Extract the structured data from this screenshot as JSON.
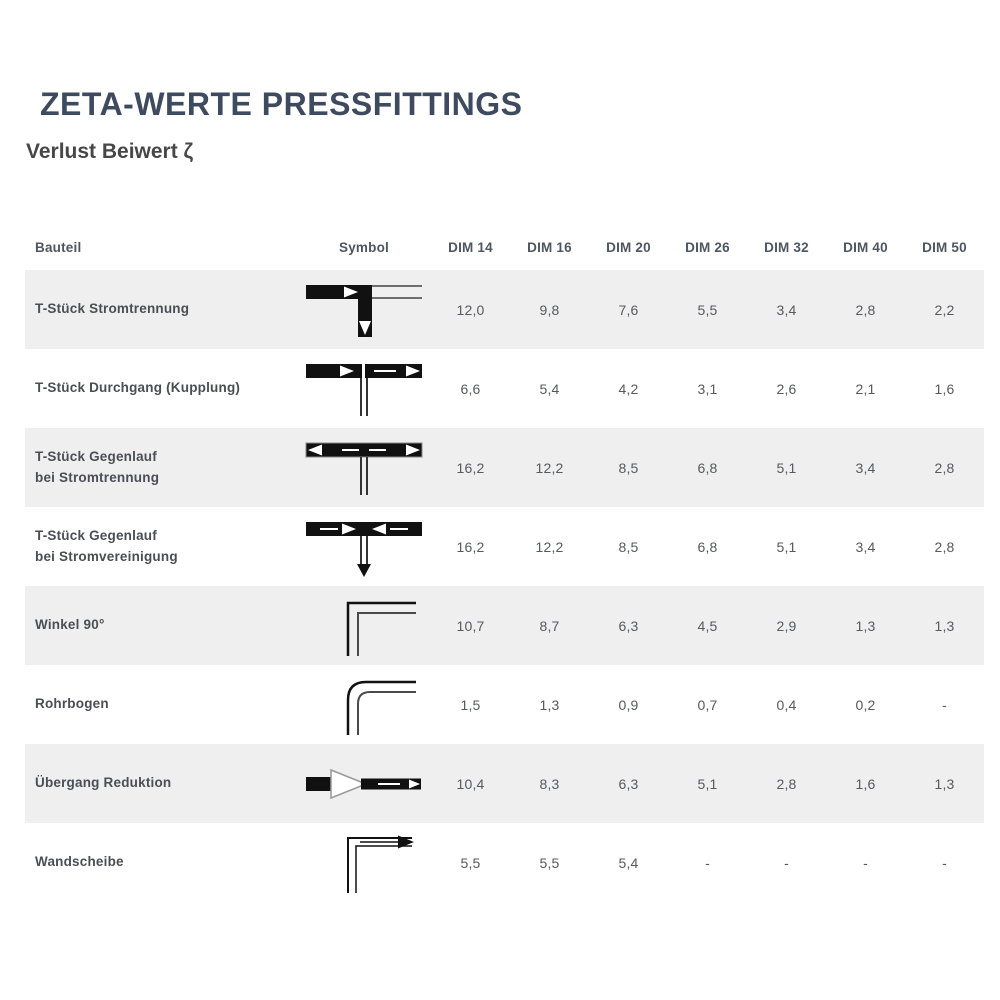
{
  "page": {
    "title": "ZETA-WERTE PRESSFITTINGS",
    "subtitle": "Verlust Beiwert ζ"
  },
  "colors": {
    "title": "#3e4a5e",
    "subtitle": "#474747",
    "header_text": "#4e5661",
    "label_text": "#4b4e54",
    "value_text": "#56595e",
    "alt_row_bg": "#efefef",
    "symbol_ink": "#111111"
  },
  "table": {
    "columns": [
      "Bauteil",
      "Symbol",
      "DIM 14",
      "DIM 16",
      "DIM 20",
      "DIM 26",
      "DIM 32",
      "DIM 40",
      "DIM 50"
    ],
    "rows": [
      {
        "label": "T-Stück Stromtrennung",
        "symbol": "t-stueck-stromtrennung",
        "values": [
          "12,0",
          "9,8",
          "7,6",
          "5,5",
          "3,4",
          "2,8",
          "2,2"
        ]
      },
      {
        "label": "T-Stück Durchgang (Kupplung)",
        "symbol": "t-stueck-durchgang-kupplung",
        "values": [
          "6,6",
          "5,4",
          "4,2",
          "3,1",
          "2,6",
          "2,1",
          "1,6"
        ]
      },
      {
        "label": "T-Stück Gegenlauf\nbei Stromtrennung",
        "symbol": "t-stueck-gegenlauf-stromtrennung",
        "values": [
          "16,2",
          "12,2",
          "8,5",
          "6,8",
          "5,1",
          "3,4",
          "2,8"
        ]
      },
      {
        "label": "T-Stück Gegenlauf\nbei Stromvereinigung",
        "symbol": "t-stueck-gegenlauf-stromvereinigung",
        "values": [
          "16,2",
          "12,2",
          "8,5",
          "6,8",
          "5,1",
          "3,4",
          "2,8"
        ]
      },
      {
        "label": "Winkel 90°",
        "symbol": "winkel-90",
        "values": [
          "10,7",
          "8,7",
          "6,3",
          "4,5",
          "2,9",
          "1,3",
          "1,3"
        ]
      },
      {
        "label": "Rohrbogen",
        "symbol": "rohrbogen",
        "values": [
          "1,5",
          "1,3",
          "0,9",
          "0,7",
          "0,4",
          "0,2",
          "-"
        ]
      },
      {
        "label": "Übergang Reduktion",
        "symbol": "uebergang-reduktion",
        "values": [
          "10,4",
          "8,3",
          "6,3",
          "5,1",
          "2,8",
          "1,6",
          "1,3"
        ]
      },
      {
        "label": "Wandscheibe",
        "symbol": "wandscheibe",
        "values": [
          "5,5",
          "5,5",
          "5,4",
          "-",
          "-",
          "-",
          "-"
        ]
      }
    ]
  }
}
